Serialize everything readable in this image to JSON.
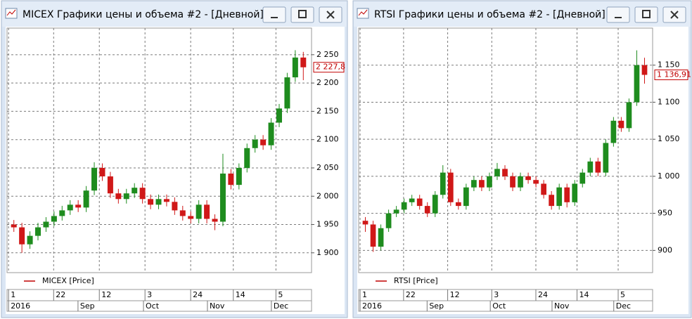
{
  "chart_data": [
    {
      "type": "candlestick",
      "title": "MICEX Графики цены и объема #2 - [Дневной]",
      "series": [
        {
          "name": "MICEX [Price]",
          "color": "#c00000",
          "open": [
            1950,
            1945,
            1915,
            1930,
            1945,
            1955,
            1965,
            1975,
            1985,
            1980,
            2010,
            2050,
            2035,
            2005,
            1995,
            2005,
            2015,
            1995,
            1985,
            1995,
            1990,
            1975,
            1965,
            1960,
            1985,
            1960,
            1955,
            2040,
            2020,
            2050,
            2085,
            2100,
            2090,
            2130,
            2155,
            2210,
            2245
          ],
          "high": [
            1958,
            1953,
            1938,
            1953,
            1963,
            1973,
            1983,
            1993,
            1993,
            2018,
            2060,
            2058,
            2043,
            2013,
            2013,
            2023,
            2023,
            2003,
            2003,
            2003,
            1998,
            1983,
            1973,
            1993,
            1993,
            1968,
            2075,
            2048,
            2058,
            2093,
            2108,
            2108,
            2138,
            2163,
            2218,
            2258,
            2255
          ],
          "low": [
            1937,
            1900,
            1907,
            1922,
            1937,
            1947,
            1957,
            1967,
            1972,
            1972,
            2002,
            2027,
            1997,
            1987,
            1987,
            1997,
            1987,
            1977,
            1977,
            1982,
            1967,
            1957,
            1952,
            1952,
            1952,
            1940,
            1947,
            2012,
            2012,
            2042,
            2077,
            2082,
            2082,
            2122,
            2147,
            2202,
            2205
          ],
          "close": [
            1945,
            1915,
            1930,
            1945,
            1955,
            1965,
            1975,
            1985,
            1980,
            2010,
            2050,
            2035,
            2005,
            1995,
            2005,
            2015,
            1995,
            1985,
            1995,
            1990,
            1975,
            1965,
            1960,
            1985,
            1960,
            1955,
            2040,
            2020,
            2050,
            2085,
            2100,
            2090,
            2130,
            2155,
            2210,
            2245,
            2227.8
          ]
        }
      ],
      "up_color": "#1e8c1e",
      "down_color": "#d01818",
      "grid": true,
      "ylim": [
        1865,
        2297
      ],
      "yticks": [
        {
          "value": 1900,
          "label": "1 900"
        },
        {
          "value": 1950,
          "label": "1 950"
        },
        {
          "value": 2000,
          "label": "2 000"
        },
        {
          "value": 2050,
          "label": "2 050"
        },
        {
          "value": 2100,
          "label": "2 100"
        },
        {
          "value": 2150,
          "label": "2 150"
        },
        {
          "value": 2200,
          "label": "2 200"
        },
        {
          "value": 2250,
          "label": "2 250"
        }
      ],
      "last_price": {
        "value": 2227.8,
        "label": "2 227,8"
      },
      "x_labels_top": [
        "1",
        "22",
        "12",
        "3",
        "24",
        "14",
        "5"
      ],
      "x_labels_bottom": [
        "2016",
        "Sep",
        "Oct",
        "Nov",
        "Dec"
      ]
    },
    {
      "type": "candlestick",
      "title": "RTSI Графики цены и объема #2 - [Дневной]",
      "series": [
        {
          "name": "RTSI [Price]",
          "color": "#c00000",
          "open": [
            940,
            935,
            905,
            930,
            950,
            955,
            965,
            970,
            960,
            950,
            975,
            1005,
            965,
            960,
            985,
            995,
            985,
            1000,
            1010,
            1000,
            985,
            1000,
            995,
            990,
            975,
            960,
            985,
            965,
            990,
            1005,
            1020,
            1005,
            1045,
            1075,
            1065,
            1100,
            1150
          ],
          "high": [
            945,
            940,
            935,
            955,
            960,
            970,
            975,
            975,
            965,
            980,
            1015,
            1010,
            970,
            990,
            1000,
            1000,
            1005,
            1018,
            1015,
            1005,
            1005,
            1005,
            1000,
            995,
            980,
            990,
            990,
            995,
            1010,
            1025,
            1025,
            1050,
            1080,
            1080,
            1105,
            1170,
            1160
          ],
          "low": [
            925,
            898,
            900,
            925,
            945,
            950,
            960,
            955,
            945,
            945,
            970,
            960,
            955,
            955,
            980,
            980,
            980,
            995,
            995,
            980,
            980,
            990,
            985,
            970,
            955,
            955,
            958,
            960,
            985,
            1000,
            1000,
            1000,
            1040,
            1060,
            1060,
            1095,
            1125
          ],
          "close": [
            935,
            905,
            930,
            950,
            955,
            965,
            970,
            960,
            950,
            975,
            1005,
            965,
            960,
            985,
            995,
            985,
            1000,
            1010,
            1000,
            985,
            1000,
            995,
            990,
            975,
            960,
            985,
            965,
            990,
            1005,
            1020,
            1005,
            1045,
            1075,
            1065,
            1100,
            1150,
            1136.91
          ]
        }
      ],
      "up_color": "#1e8c1e",
      "down_color": "#d01818",
      "grid": true,
      "ylim": [
        870,
        1200
      ],
      "yticks": [
        900,
        950,
        {
          "value": 1000,
          "label": "1 000"
        },
        {
          "value": 1050,
          "label": "1 050"
        },
        {
          "value": 1100,
          "label": "1 100"
        },
        {
          "value": 1150,
          "label": "1 150"
        }
      ],
      "last_price": {
        "value": 1136.91,
        "label": "1 136,91"
      },
      "x_labels_top": [
        "1",
        "22",
        "12",
        "3",
        "24",
        "14",
        "5"
      ],
      "x_labels_bottom": [
        "2016",
        "Sep",
        "Oct",
        "Nov",
        "Dec"
      ]
    }
  ]
}
